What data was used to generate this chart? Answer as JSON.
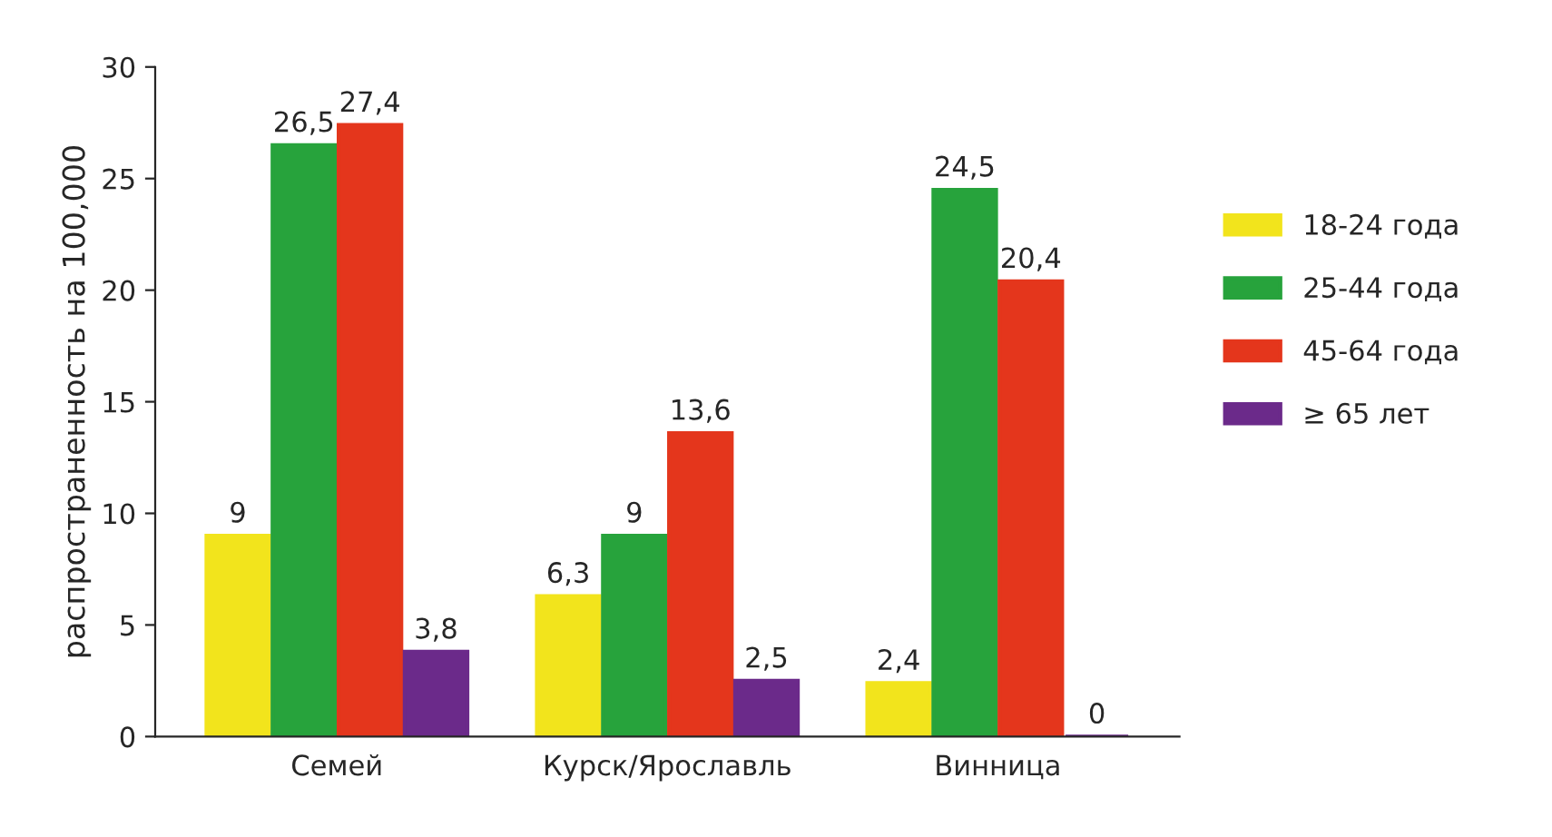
{
  "chart_data": {
    "type": "bar",
    "ylabel": "распространенность на 100,000",
    "categories": [
      "Семей",
      "Курск/Ярославль",
      "Винница"
    ],
    "series": [
      {
        "name": "18-24 года",
        "color": "#f2e41c",
        "values": [
          9,
          6.3,
          2.4
        ],
        "value_labels": [
          "9",
          "6,3",
          "2,4"
        ]
      },
      {
        "name": "25-44 года",
        "color": "#27a33c",
        "values": [
          26.5,
          9,
          24.5
        ],
        "value_labels": [
          "26,5",
          "9",
          "24,5"
        ]
      },
      {
        "name": "45-64 года",
        "color": "#e4361c",
        "values": [
          27.4,
          13.6,
          20.4
        ],
        "value_labels": [
          "27,4",
          "13,6",
          "20,4"
        ]
      },
      {
        "name": "≥ 65 лет",
        "color": "#6b2a8a",
        "values": [
          3.8,
          2.5,
          0
        ],
        "value_labels": [
          "3,8",
          "2,5",
          "0"
        ]
      }
    ],
    "ylim": [
      0,
      30
    ],
    "yticks": [
      0,
      5,
      10,
      15,
      20,
      25,
      30
    ],
    "grid": false,
    "legend": "right"
  }
}
